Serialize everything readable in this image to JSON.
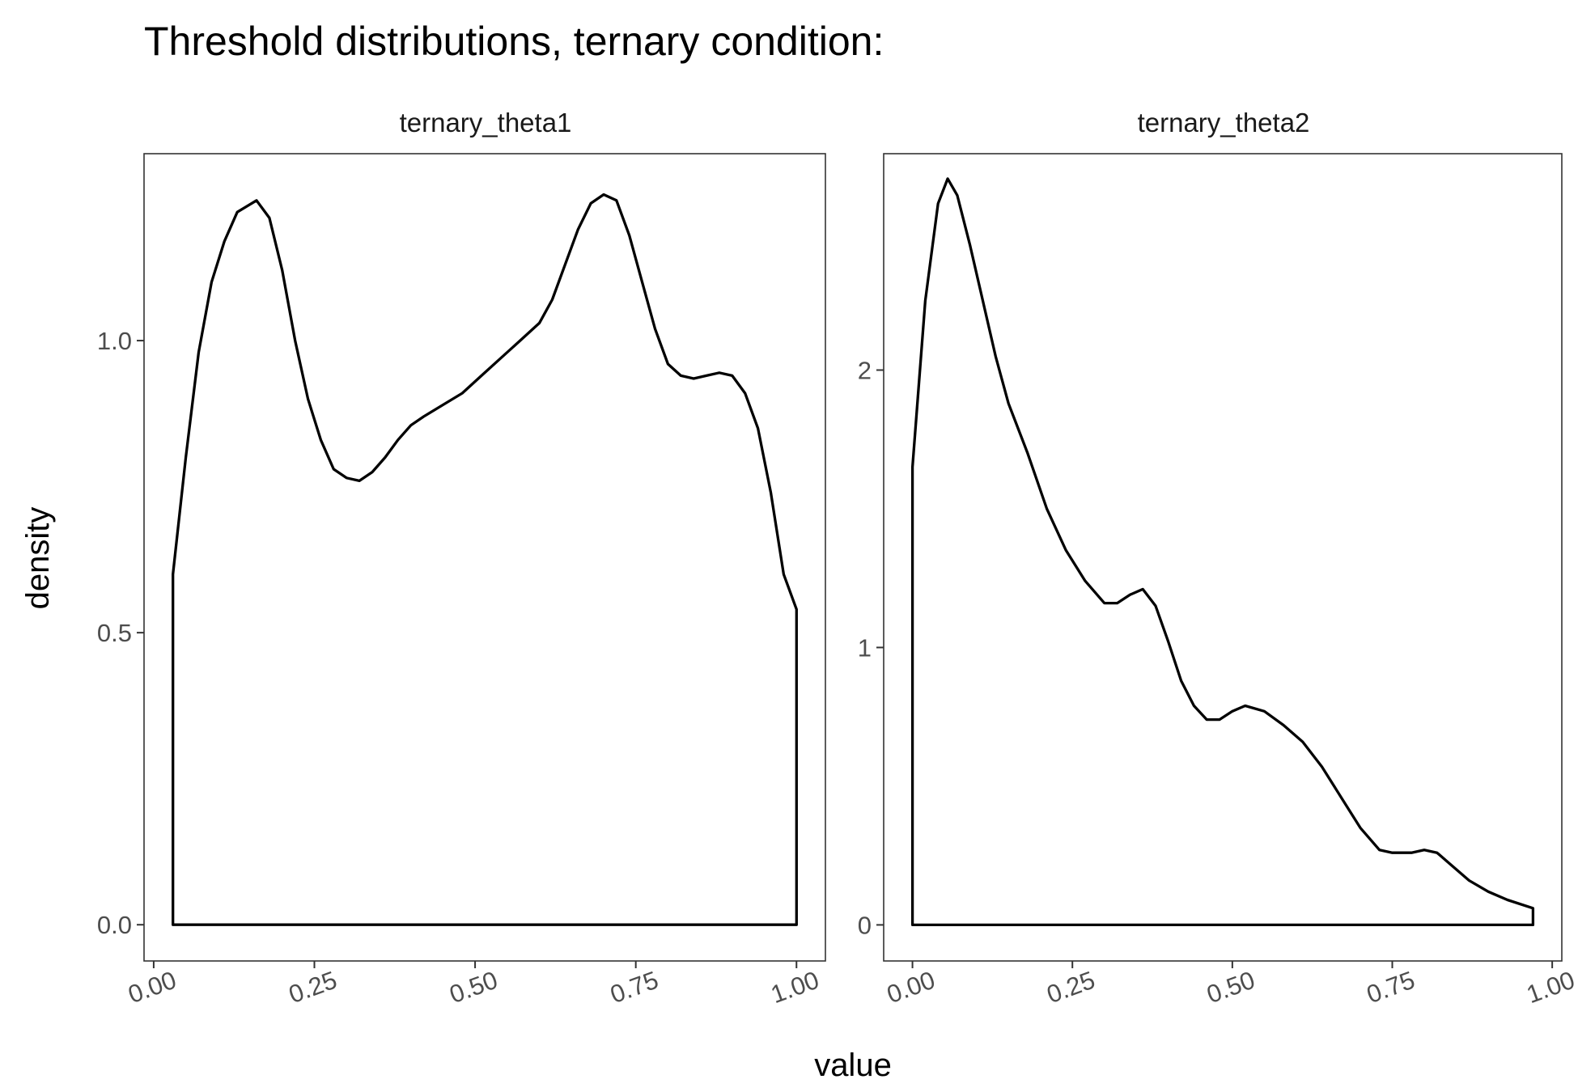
{
  "chart_data": {
    "type": "line",
    "title": "Threshold distributions, ternary condition:",
    "xlabel": "value",
    "ylabel": "density",
    "grid": false,
    "facets": [
      {
        "strip_label": "ternary_theta1",
        "xlim": [
          -0.015,
          1.045
        ],
        "ylim": [
          -0.062,
          1.32
        ],
        "x_ticks": [
          0,
          0.25,
          0.5,
          0.75,
          1
        ],
        "x_tick_labels": [
          "0.00",
          "0.25",
          "0.50",
          "0.75",
          "1.00"
        ],
        "y_ticks": [
          0,
          0.5,
          1
        ],
        "y_tick_labels": [
          "0.0",
          "0.5",
          "1.0"
        ],
        "x": [
          0.03,
          0.05,
          0.07,
          0.09,
          0.11,
          0.13,
          0.16,
          0.18,
          0.2,
          0.22,
          0.24,
          0.26,
          0.28,
          0.3,
          0.32,
          0.34,
          0.36,
          0.38,
          0.4,
          0.42,
          0.45,
          0.48,
          0.51,
          0.54,
          0.57,
          0.6,
          0.62,
          0.64,
          0.66,
          0.68,
          0.7,
          0.72,
          0.74,
          0.76,
          0.78,
          0.8,
          0.82,
          0.84,
          0.86,
          0.88,
          0.9,
          0.92,
          0.94,
          0.96,
          0.98,
          1.0
        ],
        "y": [
          0.6,
          0.8,
          0.98,
          1.1,
          1.17,
          1.22,
          1.24,
          1.21,
          1.12,
          1.0,
          0.9,
          0.83,
          0.78,
          0.765,
          0.76,
          0.775,
          0.8,
          0.83,
          0.855,
          0.87,
          0.89,
          0.91,
          0.94,
          0.97,
          1.0,
          1.03,
          1.07,
          1.13,
          1.19,
          1.235,
          1.25,
          1.24,
          1.18,
          1.1,
          1.02,
          0.96,
          0.94,
          0.935,
          0.94,
          0.945,
          0.94,
          0.91,
          0.85,
          0.74,
          0.6,
          0.54
        ]
      },
      {
        "strip_label": "ternary_theta2",
        "xlim": [
          -0.045,
          1.015
        ],
        "ylim": [
          -0.13,
          2.78
        ],
        "x_ticks": [
          0,
          0.25,
          0.5,
          0.75,
          1
        ],
        "x_tick_labels": [
          "0.00",
          "0.25",
          "0.50",
          "0.75",
          "1.00"
        ],
        "y_ticks": [
          0,
          1,
          2
        ],
        "y_tick_labels": [
          "0",
          "1",
          "2"
        ],
        "x": [
          0.0,
          0.02,
          0.04,
          0.055,
          0.07,
          0.09,
          0.11,
          0.13,
          0.15,
          0.18,
          0.21,
          0.24,
          0.27,
          0.3,
          0.32,
          0.34,
          0.36,
          0.38,
          0.4,
          0.42,
          0.44,
          0.46,
          0.48,
          0.5,
          0.52,
          0.55,
          0.58,
          0.61,
          0.64,
          0.67,
          0.7,
          0.73,
          0.75,
          0.78,
          0.8,
          0.82,
          0.84,
          0.87,
          0.9,
          0.93,
          0.97
        ],
        "y": [
          1.65,
          2.25,
          2.6,
          2.69,
          2.63,
          2.45,
          2.25,
          2.05,
          1.88,
          1.7,
          1.5,
          1.35,
          1.24,
          1.16,
          1.16,
          1.19,
          1.21,
          1.15,
          1.02,
          0.88,
          0.79,
          0.74,
          0.74,
          0.77,
          0.79,
          0.77,
          0.72,
          0.66,
          0.57,
          0.46,
          0.35,
          0.27,
          0.26,
          0.26,
          0.27,
          0.26,
          0.22,
          0.16,
          0.12,
          0.09,
          0.06
        ]
      }
    ]
  }
}
